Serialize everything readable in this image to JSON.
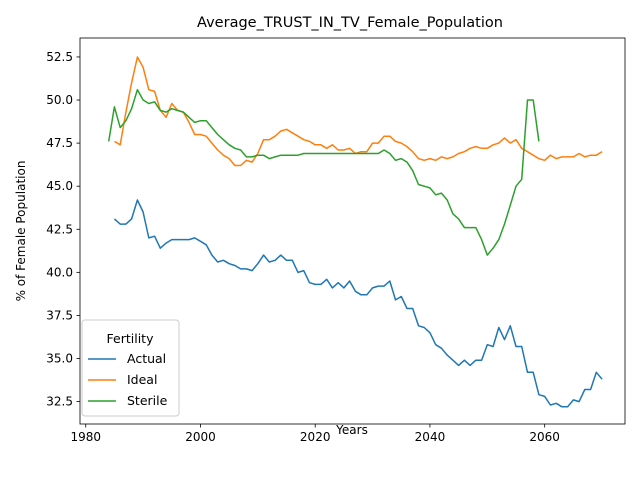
{
  "chart_data": {
    "type": "line",
    "title": "Average_TRUST_IN_TV_Female_Population",
    "xlabel": "Years",
    "ylabel": "% of Female Population",
    "xlim": [
      1979,
      2074
    ],
    "ylim": [
      31.2,
      53.6
    ],
    "xticks": [
      1980,
      2000,
      2020,
      2040,
      2060
    ],
    "yticks": [
      32.5,
      35.0,
      37.5,
      40.0,
      42.5,
      45.0,
      47.5,
      50.0,
      52.5
    ],
    "grid": false,
    "legend": {
      "title": "Fertility",
      "placement": "lower-left"
    },
    "series": [
      {
        "name": "Actual",
        "color": "#1f77b4",
        "x": [
          1985,
          1986,
          1987,
          1988,
          1989,
          1990,
          1991,
          1992,
          1993,
          1994,
          1995,
          1996,
          1997,
          1998,
          1999,
          2000,
          2001,
          2002,
          2003,
          2004,
          2005,
          2006,
          2007,
          2008,
          2009,
          2010,
          2011,
          2012,
          2013,
          2014,
          2015,
          2016,
          2017,
          2018,
          2019,
          2020,
          2021,
          2022,
          2023,
          2024,
          2025,
          2026,
          2027,
          2028,
          2029,
          2030,
          2031,
          2032,
          2033,
          2034,
          2035,
          2036,
          2037,
          2038,
          2039,
          2040,
          2041,
          2042,
          2043,
          2044,
          2045,
          2046,
          2047,
          2048,
          2049,
          2050,
          2051,
          2052,
          2053,
          2054,
          2055,
          2056,
          2057,
          2058,
          2059,
          2060,
          2061,
          2062,
          2063,
          2064,
          2065,
          2066,
          2067,
          2068,
          2069,
          2070
        ],
        "values": [
          43.1,
          42.8,
          42.8,
          43.1,
          44.2,
          43.5,
          42.0,
          42.1,
          41.4,
          41.7,
          41.9,
          41.9,
          41.9,
          41.9,
          42.0,
          41.8,
          41.6,
          41.0,
          40.6,
          40.7,
          40.5,
          40.4,
          40.2,
          40.2,
          40.1,
          40.5,
          41.0,
          40.6,
          40.7,
          41.0,
          40.7,
          40.7,
          40.0,
          40.1,
          39.4,
          39.3,
          39.3,
          39.6,
          39.1,
          39.4,
          39.1,
          39.5,
          38.9,
          38.7,
          38.7,
          39.1,
          39.2,
          39.2,
          39.5,
          38.4,
          38.6,
          37.9,
          37.9,
          36.9,
          36.8,
          36.5,
          35.8,
          35.6,
          35.2,
          34.9,
          34.6,
          34.9,
          34.6,
          34.9,
          34.9,
          35.8,
          35.7,
          36.8,
          36.1,
          36.9,
          35.7,
          35.7,
          34.2,
          34.2,
          32.9,
          32.8,
          32.3,
          32.4,
          32.2,
          32.2,
          32.6,
          32.5,
          33.2,
          33.2,
          34.2,
          33.8
        ]
      },
      {
        "name": "Ideal",
        "color": "#ff7f0e",
        "x": [
          1985,
          1986,
          1987,
          1988,
          1989,
          1990,
          1991,
          1992,
          1993,
          1994,
          1995,
          1996,
          1997,
          1998,
          1999,
          2000,
          2001,
          2002,
          2003,
          2004,
          2005,
          2006,
          2007,
          2008,
          2009,
          2010,
          2011,
          2012,
          2013,
          2014,
          2015,
          2016,
          2017,
          2018,
          2019,
          2020,
          2021,
          2022,
          2023,
          2024,
          2025,
          2026,
          2027,
          2028,
          2029,
          2030,
          2031,
          2032,
          2033,
          2034,
          2035,
          2036,
          2037,
          2038,
          2039,
          2040,
          2041,
          2042,
          2043,
          2044,
          2045,
          2046,
          2047,
          2048,
          2049,
          2050,
          2051,
          2052,
          2053,
          2054,
          2055,
          2056,
          2057,
          2058,
          2059,
          2060,
          2061,
          2062,
          2063,
          2064,
          2065,
          2066,
          2067,
          2068,
          2069,
          2070
        ],
        "values": [
          47.6,
          47.4,
          49.3,
          51.0,
          52.5,
          51.9,
          50.6,
          50.5,
          49.4,
          49.0,
          49.8,
          49.4,
          49.3,
          48.7,
          48.0,
          48.0,
          47.9,
          47.5,
          47.1,
          46.8,
          46.6,
          46.2,
          46.2,
          46.5,
          46.4,
          46.9,
          47.7,
          47.7,
          47.9,
          48.2,
          48.3,
          48.1,
          47.9,
          47.7,
          47.6,
          47.4,
          47.4,
          47.2,
          47.4,
          47.1,
          47.1,
          47.2,
          46.9,
          47.0,
          47.0,
          47.5,
          47.5,
          47.9,
          47.9,
          47.6,
          47.5,
          47.3,
          47.0,
          46.6,
          46.5,
          46.6,
          46.5,
          46.7,
          46.6,
          46.7,
          46.9,
          47.0,
          47.2,
          47.3,
          47.2,
          47.2,
          47.4,
          47.5,
          47.8,
          47.5,
          47.7,
          47.2,
          47.0,
          46.8,
          46.6,
          46.5,
          46.8,
          46.6,
          46.7,
          46.7,
          46.7,
          46.9,
          46.7,
          46.8,
          46.8,
          47.0
        ]
      },
      {
        "name": "Sterile",
        "color": "#2ca02c",
        "x": [
          1984,
          1985,
          1986,
          1987,
          1988,
          1989,
          1990,
          1991,
          1992,
          1993,
          1994,
          1995,
          1996,
          1997,
          1998,
          1999,
          2000,
          2001,
          2002,
          2003,
          2004,
          2005,
          2006,
          2007,
          2008,
          2009,
          2010,
          2011,
          2012,
          2013,
          2014,
          2015,
          2016,
          2017,
          2018,
          2019,
          2020,
          2021,
          2022,
          2023,
          2024,
          2025,
          2026,
          2027,
          2028,
          2029,
          2030,
          2031,
          2032,
          2033,
          2034,
          2035,
          2036,
          2037,
          2038,
          2039,
          2040,
          2041,
          2042,
          2043,
          2044,
          2045,
          2046,
          2047,
          2048,
          2049,
          2050,
          2051,
          2052,
          2053,
          2054,
          2055,
          2056,
          2057,
          2058,
          2059
        ],
        "values": [
          47.6,
          49.6,
          48.4,
          48.8,
          49.5,
          50.6,
          50.0,
          49.8,
          49.9,
          49.4,
          49.3,
          49.5,
          49.4,
          49.3,
          49.0,
          48.7,
          48.8,
          48.8,
          48.4,
          48.0,
          47.7,
          47.4,
          47.2,
          47.1,
          46.7,
          46.7,
          46.8,
          46.8,
          46.6,
          46.7,
          46.8,
          46.8,
          46.8,
          46.8,
          46.9,
          46.9,
          46.9,
          46.9,
          46.9,
          46.9,
          46.9,
          46.9,
          46.9,
          46.9,
          46.9,
          46.9,
          46.9,
          46.9,
          47.1,
          46.9,
          46.5,
          46.6,
          46.4,
          45.9,
          45.1,
          45.0,
          44.9,
          44.5,
          44.6,
          44.2,
          43.4,
          43.1,
          42.6,
          42.6,
          42.6,
          41.9,
          41.0,
          41.4,
          41.9,
          42.8,
          43.9,
          45.0,
          45.4,
          50.0,
          50.0,
          47.6
        ]
      }
    ]
  }
}
